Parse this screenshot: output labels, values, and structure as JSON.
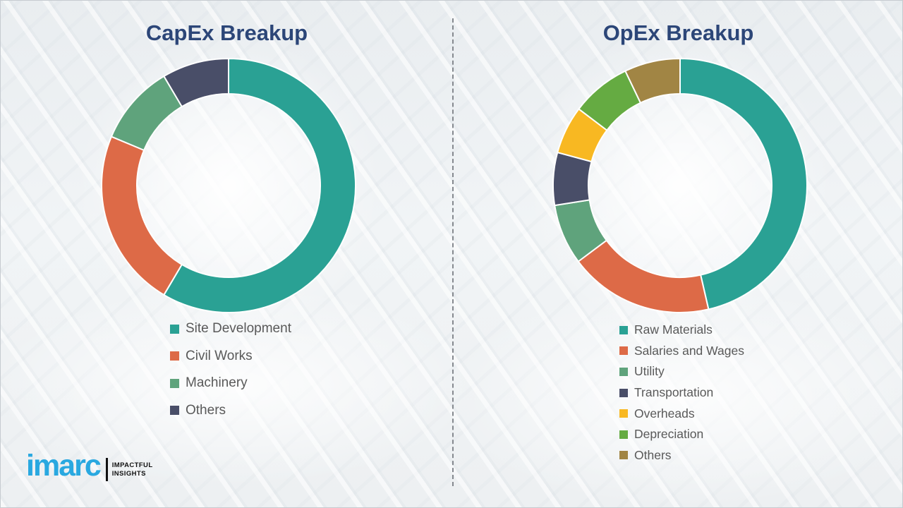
{
  "chart_data": [
    {
      "type": "donut",
      "title": "CapEx Breakup",
      "direction": "clockwise",
      "start_angle_deg": 0,
      "legend_position": "bottom-left",
      "categories": [
        "Site Development",
        "Civil Works",
        "Machinery",
        "Others"
      ],
      "values": [
        58.5,
        22.8,
        10.2,
        8.5
      ],
      "colors": [
        "#2AA194",
        "#DD6A47",
        "#5FA37C",
        "#494E68"
      ]
    },
    {
      "type": "donut",
      "title": "OpEx Breakup",
      "direction": "clockwise",
      "start_angle_deg": 0,
      "legend_position": "bottom-left",
      "categories": [
        "Raw Materials",
        "Salaries and Wages",
        "Utility",
        "Transportation",
        "Overheads",
        "Depreciation",
        "Others"
      ],
      "values": [
        46.4,
        18.4,
        7.7,
        6.7,
        6.1,
        7.6,
        7.1
      ],
      "colors": [
        "#2AA194",
        "#DD6A47",
        "#5FA37C",
        "#494E68",
        "#F8B822",
        "#65AB42",
        "#A18544"
      ]
    }
  ],
  "style": {
    "title_color": "#2C4678",
    "legend_text_color": "#595959",
    "divider_color": "#85898F",
    "segment_gap_color": "#FFFFFF"
  },
  "branding": {
    "logo_text": "imarc",
    "tagline_line1": "IMPACTFUL",
    "tagline_line2": "INSIGHTS",
    "logo_color": "#29A8E0"
  }
}
